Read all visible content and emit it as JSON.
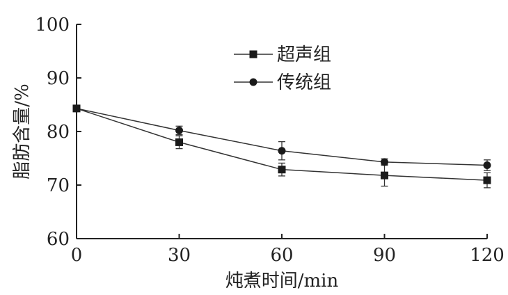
{
  "chart_data": {
    "type": "line",
    "xlabel": "炖煮时间/min",
    "ylabel": "脂肪含量/%",
    "x": [
      0,
      30,
      60,
      90,
      120
    ],
    "xticks": [
      0,
      30,
      60,
      90,
      120
    ],
    "yticks": [
      60,
      70,
      80,
      90,
      100
    ],
    "xlim": [
      0,
      120
    ],
    "ylim": [
      60,
      100
    ],
    "legend_position": "top-center",
    "grid": false,
    "series": [
      {
        "name": "超声组",
        "marker": "square",
        "values": [
          84.3,
          78.0,
          72.9,
          71.8,
          70.9
        ],
        "errors": [
          0.0,
          1.2,
          1.2,
          2.0,
          1.4
        ]
      },
      {
        "name": "传统组",
        "marker": "circle",
        "values": [
          84.3,
          80.2,
          76.4,
          74.3,
          73.7
        ],
        "errors": [
          0.0,
          0.8,
          1.7,
          0.6,
          1.0
        ]
      }
    ]
  }
}
